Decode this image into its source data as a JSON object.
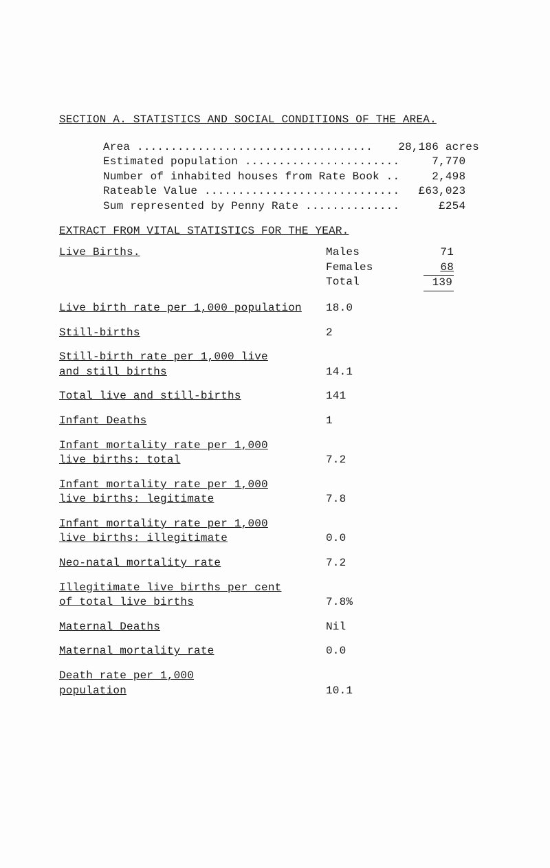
{
  "section_title": "SECTION A.  STATISTICS AND SOCIAL CONDITIONS OF THE AREA.",
  "area_stats": {
    "rows": [
      {
        "label": "Area ",
        "dots": "...................................",
        "value": "28,186",
        "suffix": " acres"
      },
      {
        "label": "Estimated population ",
        "dots": ".......................",
        "value": "7,770",
        "suffix": ""
      },
      {
        "label": "Number of inhabited houses from Rate Book ",
        "dots": "..",
        "value": "2,498",
        "suffix": ""
      },
      {
        "label": "Rateable Value ",
        "dots": ".............................",
        "value": "£63,023",
        "suffix": ""
      },
      {
        "label": "Sum represented by Penny Rate ",
        "dots": "..............",
        "value": "£254",
        "suffix": ""
      }
    ]
  },
  "extract_heading": "EXTRACT FROM VITAL STATISTICS FOR THE YEAR.",
  "live_births_label": "Live Births.",
  "males_label": "Males",
  "females_label": "Females",
  "total_label": "Total",
  "males_val": "71",
  "females_val": "68",
  "total_val": "139",
  "stats": [
    {
      "label": "Live birth rate per 1,000 population",
      "value": "18.0"
    },
    {
      "label": "Still-births",
      "value": "2"
    },
    {
      "label": "Still-birth rate per 1,000 live\nand still births",
      "value": "14.1"
    },
    {
      "label": "Total live and still-births",
      "value": "141"
    },
    {
      "label": "Infant Deaths",
      "value": "1"
    },
    {
      "label": "Infant mortality rate per 1,000\nlive births: total",
      "value": "7.2"
    },
    {
      "label": "Infant mortality rate per 1,000\nlive births: legitimate",
      "value": "7.8"
    },
    {
      "label": "Infant mortality rate per 1,000\nlive births: illegitimate",
      "value": "0.0"
    },
    {
      "label": "Neo-natal mortality rate",
      "value": "7.2"
    },
    {
      "label": "Illegitimate live births per cent\nof total live births",
      "value": "7.8%"
    },
    {
      "label": "Maternal Deaths",
      "value": "Nil"
    },
    {
      "label": "Maternal mortality rate",
      "value": "0.0"
    },
    {
      "label": "Death rate per 1,000\npopulation",
      "value": "10.1"
    }
  ]
}
